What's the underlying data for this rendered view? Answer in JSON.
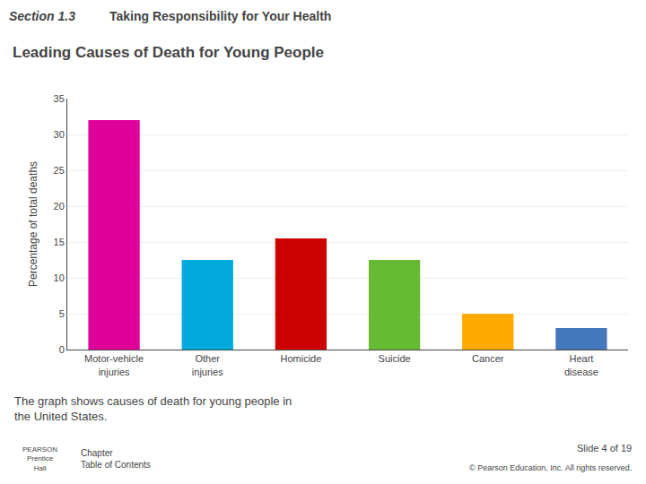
{
  "chart_data": {
    "type": "bar",
    "title": "Leading Causes of Death for Young People",
    "categories": [
      "Motor-vehicle\ninjuries",
      "Other\ninjuries",
      "Homicide",
      "Suicide",
      "Cancer",
      "Heart\ndisease"
    ],
    "values": [
      32,
      12.5,
      15.5,
      12.5,
      5,
      3
    ],
    "colors": [
      "#e0009a",
      "#00aadd",
      "#cc0000",
      "#66bb33",
      "#ffaa00",
      "#4477bb"
    ],
    "ylabel": "Percentage of total deaths",
    "ylim": [
      0,
      35
    ],
    "yticks": [
      0,
      5,
      10,
      15,
      20,
      25,
      30,
      35
    ],
    "grid": true,
    "annotations": [
      "Section 1.3",
      "Taking Responsibility for Your Health",
      "The graph shows causes of death for young people in\nthe United States.",
      "PEARSON\nPrentice\nHall",
      "Chapter\nTable of Contents",
      "Slide 4 of 19",
      "© Pearson Education, Inc. All rights reserved."
    ]
  }
}
